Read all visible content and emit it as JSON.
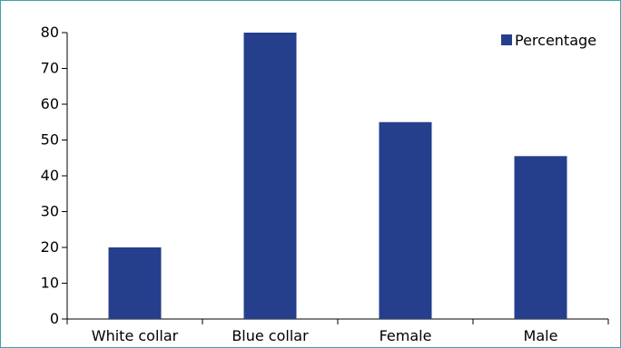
{
  "chart_data": {
    "type": "bar",
    "categories": [
      "White collar",
      "Blue collar",
      "Female",
      "Male"
    ],
    "series": [
      {
        "name": "Percentage",
        "values": [
          20,
          80,
          55,
          45.5
        ],
        "color": "#253f8d"
      }
    ],
    "title": "",
    "xlabel": "",
    "ylabel": "",
    "ylim": [
      0,
      80
    ],
    "yticks": [
      0,
      10,
      20,
      30,
      40,
      50,
      60,
      70,
      80
    ],
    "grid": false,
    "legend": "top-right"
  }
}
